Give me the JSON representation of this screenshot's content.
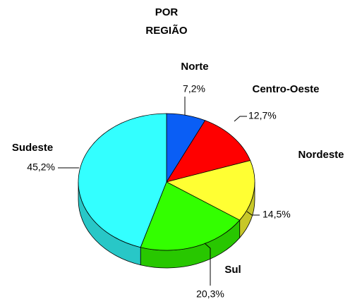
{
  "chart_data": {
    "type": "pie",
    "title": [
      "POR",
      "REGIÃO"
    ],
    "categories": [
      "Norte",
      "Centro-Oeste",
      "Nordeste",
      "Sul",
      "Sudeste"
    ],
    "values": [
      7.2,
      12.7,
      14.5,
      20.3,
      45.2
    ],
    "value_labels": [
      "7,2%",
      "12,7%",
      "14,5%",
      "20,3%",
      "45,2%"
    ],
    "colors": [
      "#0a5ef5",
      "#ff0000",
      "#ffff33",
      "#33ff00",
      "#33ffff"
    ]
  }
}
